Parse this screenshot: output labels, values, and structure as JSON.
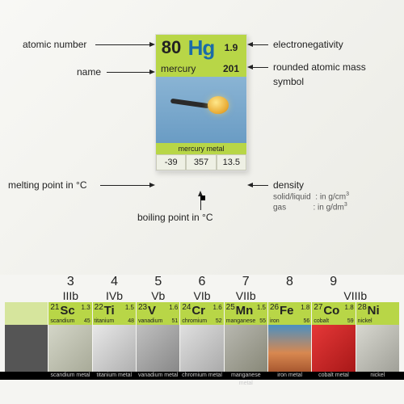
{
  "card": {
    "atomic_number": "80",
    "symbol": "Hg",
    "electronegativity": "1.9",
    "name": "mercury",
    "atomic_mass": "201",
    "category_label": "mercury metal",
    "melting_point": "-39",
    "boiling_point": "357",
    "density": "13.5",
    "colors": {
      "bg": "#b8d647",
      "symbol": "#1a6ba8",
      "text": "#222222",
      "data_bg": "#eef0e4"
    }
  },
  "labels": {
    "atomic_number": "atomic number",
    "name": "name",
    "melting": "melting point in °C",
    "boiling": "boiling point in °C",
    "electronegativity": "electronegativity",
    "mass": "rounded atomic mass",
    "symbol": "symbol",
    "density": "density",
    "density_sub1": "solid/liquid",
    "density_sub1v": ": in g/cm",
    "density_sub2": "gas",
    "density_sub2v": ": in g/dm"
  },
  "groups": [
    3,
    4,
    5,
    6,
    7,
    8,
    9
  ],
  "roman": [
    "IIIb",
    "IVb",
    "Vb",
    "VIb",
    "VIIb",
    "VIIIb"
  ],
  "elements": [
    {
      "n": 21,
      "s": "Sc",
      "e": "1.3",
      "nm": "scandium",
      "m": "45",
      "img": "sc",
      "cat": "scandium metal"
    },
    {
      "n": 22,
      "s": "Ti",
      "e": "1.5",
      "nm": "titanium",
      "m": "48",
      "img": "ti",
      "cat": "titanium metal"
    },
    {
      "n": 23,
      "s": "V",
      "e": "1.6",
      "nm": "vanadium",
      "m": "51",
      "img": "v",
      "cat": "vanadium metal"
    },
    {
      "n": 24,
      "s": "Cr",
      "e": "1.6",
      "nm": "chromium",
      "m": "52",
      "img": "cr",
      "cat": "chromium metal"
    },
    {
      "n": 25,
      "s": "Mn",
      "e": "1.5",
      "nm": "manganese",
      "m": "55",
      "img": "mn",
      "cat": "manganese metal"
    },
    {
      "n": 26,
      "s": "Fe",
      "e": "1.8",
      "nm": "iron",
      "m": "56",
      "img": "fe",
      "cat": "iron metal"
    },
    {
      "n": 27,
      "s": "Co",
      "e": "1.8",
      "nm": "cobalt",
      "m": "59",
      "img": "co",
      "cat": "cobalt metal"
    },
    {
      "n": 28,
      "s": "Ni",
      "e": "",
      "nm": "nickel",
      "m": "",
      "img": "ni",
      "cat": "nickel"
    }
  ]
}
